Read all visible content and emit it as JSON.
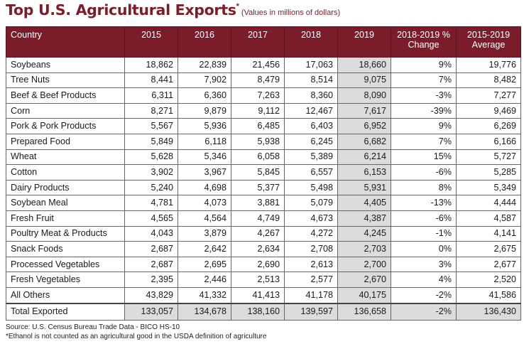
{
  "header": {
    "title": "Top U.S. Agricultural Exports",
    "title_mark": "*",
    "subtitle": "(Values in millions of dollars)"
  },
  "table": {
    "columns": [
      "Country",
      "2015",
      "2016",
      "2017",
      "2018",
      "2019",
      "2018-2019 % Change",
      "2015-2019 Average"
    ],
    "rows": [
      [
        "Soybeans",
        "18,862",
        "22,839",
        "21,456",
        "17,063",
        "18,660",
        "9%",
        "19,776"
      ],
      [
        "Tree Nuts",
        "8,441",
        "7,902",
        "8,479",
        "8,514",
        "9,075",
        "7%",
        "8,482"
      ],
      [
        "Beef & Beef Products",
        "6,311",
        "6,360",
        "7,263",
        "8,360",
        "8,090",
        "-3%",
        "7,277"
      ],
      [
        "Corn",
        "8,271",
        "9,879",
        "9,112",
        "12,467",
        "7,617",
        "-39%",
        "9,469"
      ],
      [
        "Pork & Pork Products",
        "5,567",
        "5,936",
        "6,485",
        "6,403",
        "6,952",
        "9%",
        "6,269"
      ],
      [
        "Prepared Food",
        "5,849",
        "6,118",
        "5,938",
        "6,245",
        "6,682",
        "7%",
        "6,166"
      ],
      [
        "Wheat",
        "5,628",
        "5,346",
        "6,058",
        "5,389",
        "6,214",
        "15%",
        "5,727"
      ],
      [
        "Cotton",
        "3,902",
        "3,967",
        "5,845",
        "6,557",
        "6,153",
        "-6%",
        "5,285"
      ],
      [
        "Dairy Products",
        "5,240",
        "4,698",
        "5,377",
        "5,498",
        "5,931",
        "8%",
        "5,349"
      ],
      [
        "Soybean Meal",
        "4,781",
        "4,073",
        "3,881",
        "5,079",
        "4,405",
        "-13%",
        "4,444"
      ],
      [
        "Fresh Fruit",
        "4,565",
        "4,564",
        "4,749",
        "4,673",
        "4,387",
        "-6%",
        "4,587"
      ],
      [
        "Poultry Meat & Products",
        "4,043",
        "3,879",
        "4,267",
        "4,272",
        "4,245",
        "-1%",
        "4,141"
      ],
      [
        "Snack Foods",
        "2,687",
        "2,642",
        "2,634",
        "2,708",
        "2,703",
        "0%",
        "2,675"
      ],
      [
        "Processed Vegetables",
        "2,687",
        "2,695",
        "2,690",
        "2,613",
        "2,700",
        "3%",
        "2,677"
      ],
      [
        "Fresh Vegetables",
        "2,395",
        "2,446",
        "2,513",
        "2,577",
        "2,670",
        "4%",
        "2,520"
      ],
      [
        "All Others",
        "43,829",
        "41,332",
        "41,413",
        "41,178",
        "40,175",
        "-2%",
        "41,586"
      ]
    ],
    "total": [
      "Total Exported",
      "133,057",
      "134,678",
      "138,160",
      "139,597",
      "136,658",
      "-2%",
      "136,430"
    ]
  },
  "footer": {
    "source": "Source: U.S. Census Bureau Trade Data - BICO HS-10",
    "note": "*Ethanol is not counted as an agricultural good in the USDA definition of agriculture"
  },
  "colors": {
    "accent": "#7b1c2b",
    "highlight": "#dcdcdc"
  }
}
